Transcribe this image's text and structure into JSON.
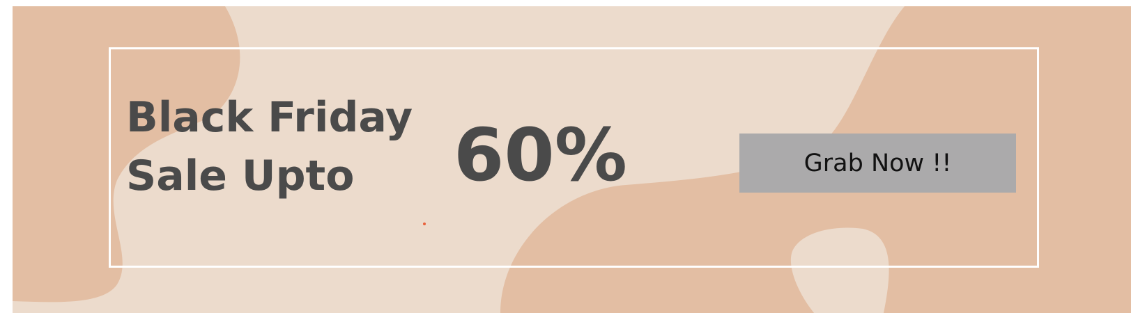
{
  "banner": {
    "line1": "Black Friday",
    "line2": "Sale Upto",
    "discount": "60%",
    "cta_label": "Grab Now !!"
  },
  "colors": {
    "background": "#ecdbcc",
    "blob": "#e3bea3",
    "frame": "#ffffff",
    "text": "#4a4a4a",
    "button": "#abaaab",
    "dot": "#e8603a"
  }
}
